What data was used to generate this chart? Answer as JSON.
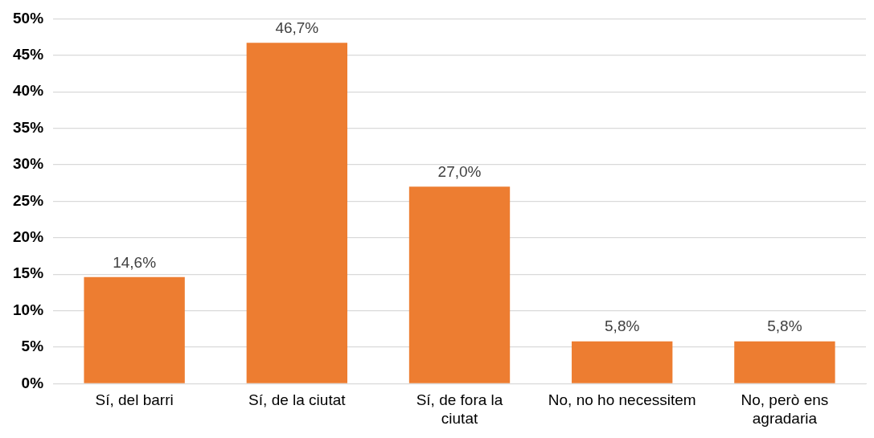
{
  "chart_data": {
    "type": "bar",
    "categories": [
      "Sí, del barri",
      "Sí, de la ciutat",
      "Sí, de fora la ciutat",
      "No, no ho necessitem",
      "No, però ens agradaria"
    ],
    "values": [
      14.6,
      46.7,
      27.0,
      5.8,
      5.8
    ],
    "value_labels": [
      "14,6%",
      "46,7%",
      "27,0%",
      "5,8%",
      "5,8%"
    ],
    "color": "#ed7d31",
    "ylim": [
      0,
      50
    ],
    "yticks": [
      {
        "value": 0,
        "label": "0%"
      },
      {
        "value": 5,
        "label": "5%"
      },
      {
        "value": 10,
        "label": "10%"
      },
      {
        "value": 15,
        "label": "15%"
      },
      {
        "value": 20,
        "label": "20%"
      },
      {
        "value": 25,
        "label": "25%"
      },
      {
        "value": 30,
        "label": "30%"
      },
      {
        "value": 35,
        "label": "35%"
      },
      {
        "value": 40,
        "label": "40%"
      },
      {
        "value": 45,
        "label": "45%"
      },
      {
        "value": 50,
        "label": "50%"
      }
    ],
    "grid": "y",
    "legend": false
  }
}
